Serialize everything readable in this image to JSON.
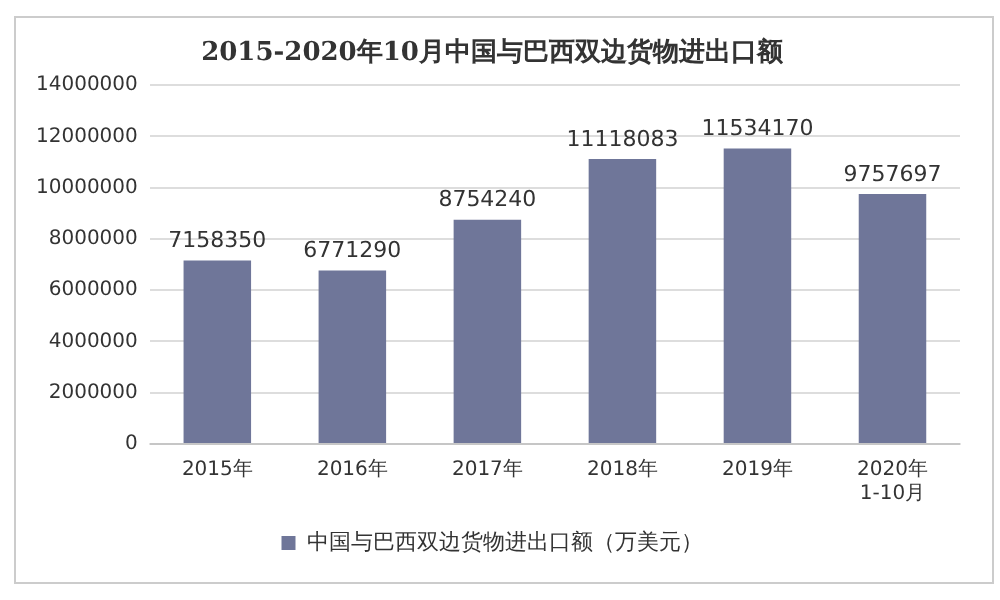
{
  "chart_data": {
    "type": "bar",
    "title": "2015-2020年10月中国与巴西双边货物进出口额",
    "categories": [
      "2015年",
      "2016年",
      "2017年",
      "2018年",
      "2019年",
      "2020年\n1-10月"
    ],
    "series": [
      {
        "name": "中国与巴西双边货物进出口额（万美元）",
        "color": "#6f7699",
        "values": [
          7158350,
          6771290,
          8754240,
          11118083,
          11534170,
          9757697
        ]
      }
    ],
    "ylim": [
      0,
      14000000
    ],
    "yticks": [
      0,
      2000000,
      4000000,
      6000000,
      8000000,
      10000000,
      12000000,
      14000000
    ],
    "grid": "y",
    "legend": "bottom",
    "data_labels": true
  }
}
